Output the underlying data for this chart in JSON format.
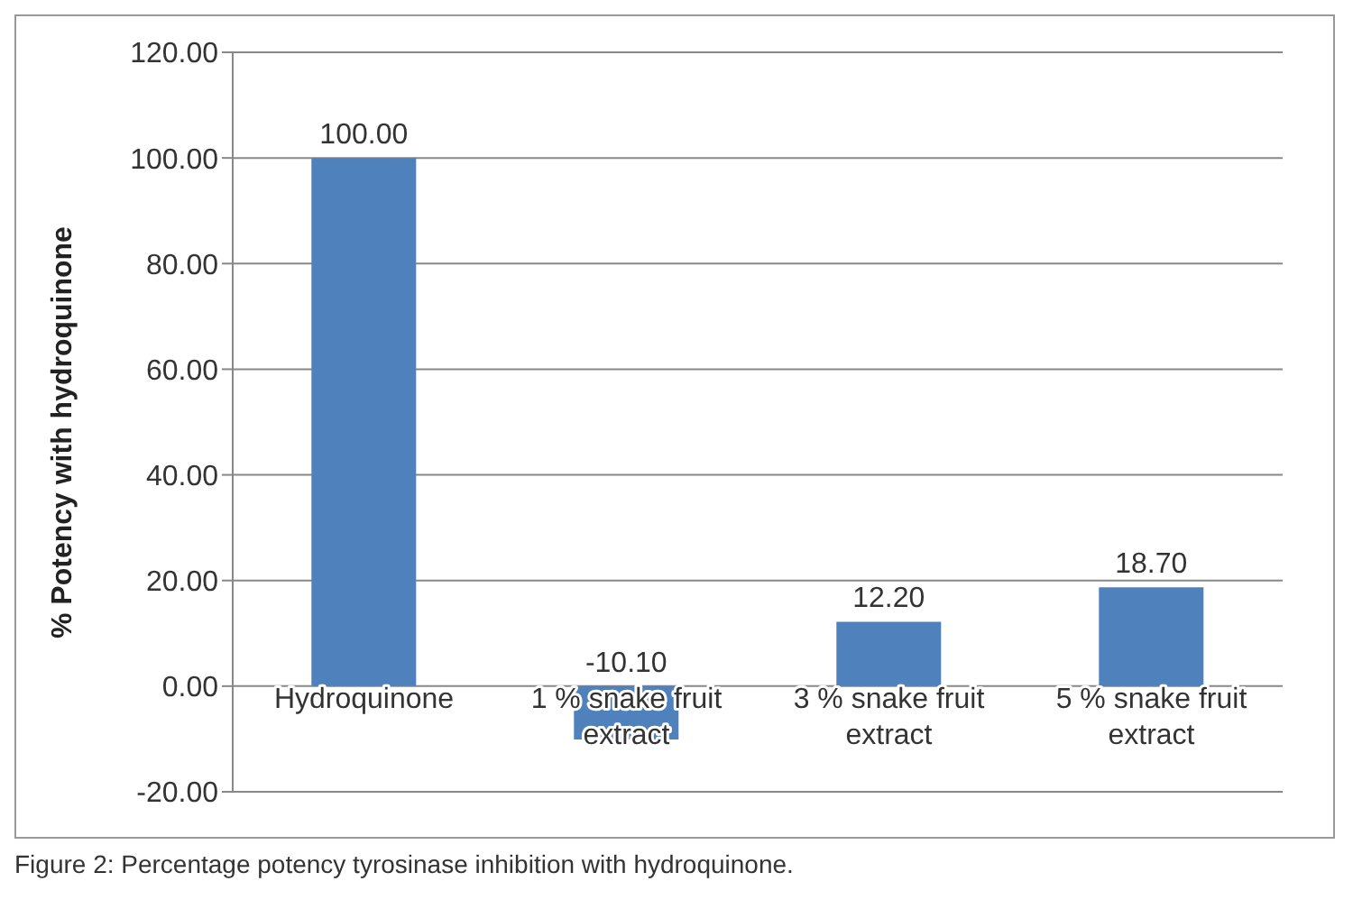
{
  "chart_data": {
    "type": "bar",
    "ylabel": "% Potency with hydroquinone",
    "categories": [
      "Hydroquinone",
      "1 % snake fruit extract",
      "3 % snake fruit extract",
      "5 % snake fruit extract"
    ],
    "values": [
      100.0,
      -10.1,
      12.2,
      18.7
    ],
    "color": "#4f81bd",
    "ylim": [
      -20,
      120
    ],
    "yticks": [
      {
        "value": -20,
        "label": "-20.00"
      },
      {
        "value": 0,
        "label": "0.00"
      },
      {
        "value": 20,
        "label": "20.00"
      },
      {
        "value": 40,
        "label": "40.00"
      },
      {
        "value": 60,
        "label": "60.00"
      },
      {
        "value": 80,
        "label": "80.00"
      },
      {
        "value": 100,
        "label": "100.00"
      },
      {
        "value": 120,
        "label": "120.00"
      }
    ],
    "grid": "y",
    "data_labels": true,
    "value_labels": [
      "100.00",
      "-10.10",
      "12.20",
      "18.70"
    ],
    "annotations": [
      "Figure 2: Percentage potency tyrosinase inhibition with hydroquinone."
    ]
  }
}
